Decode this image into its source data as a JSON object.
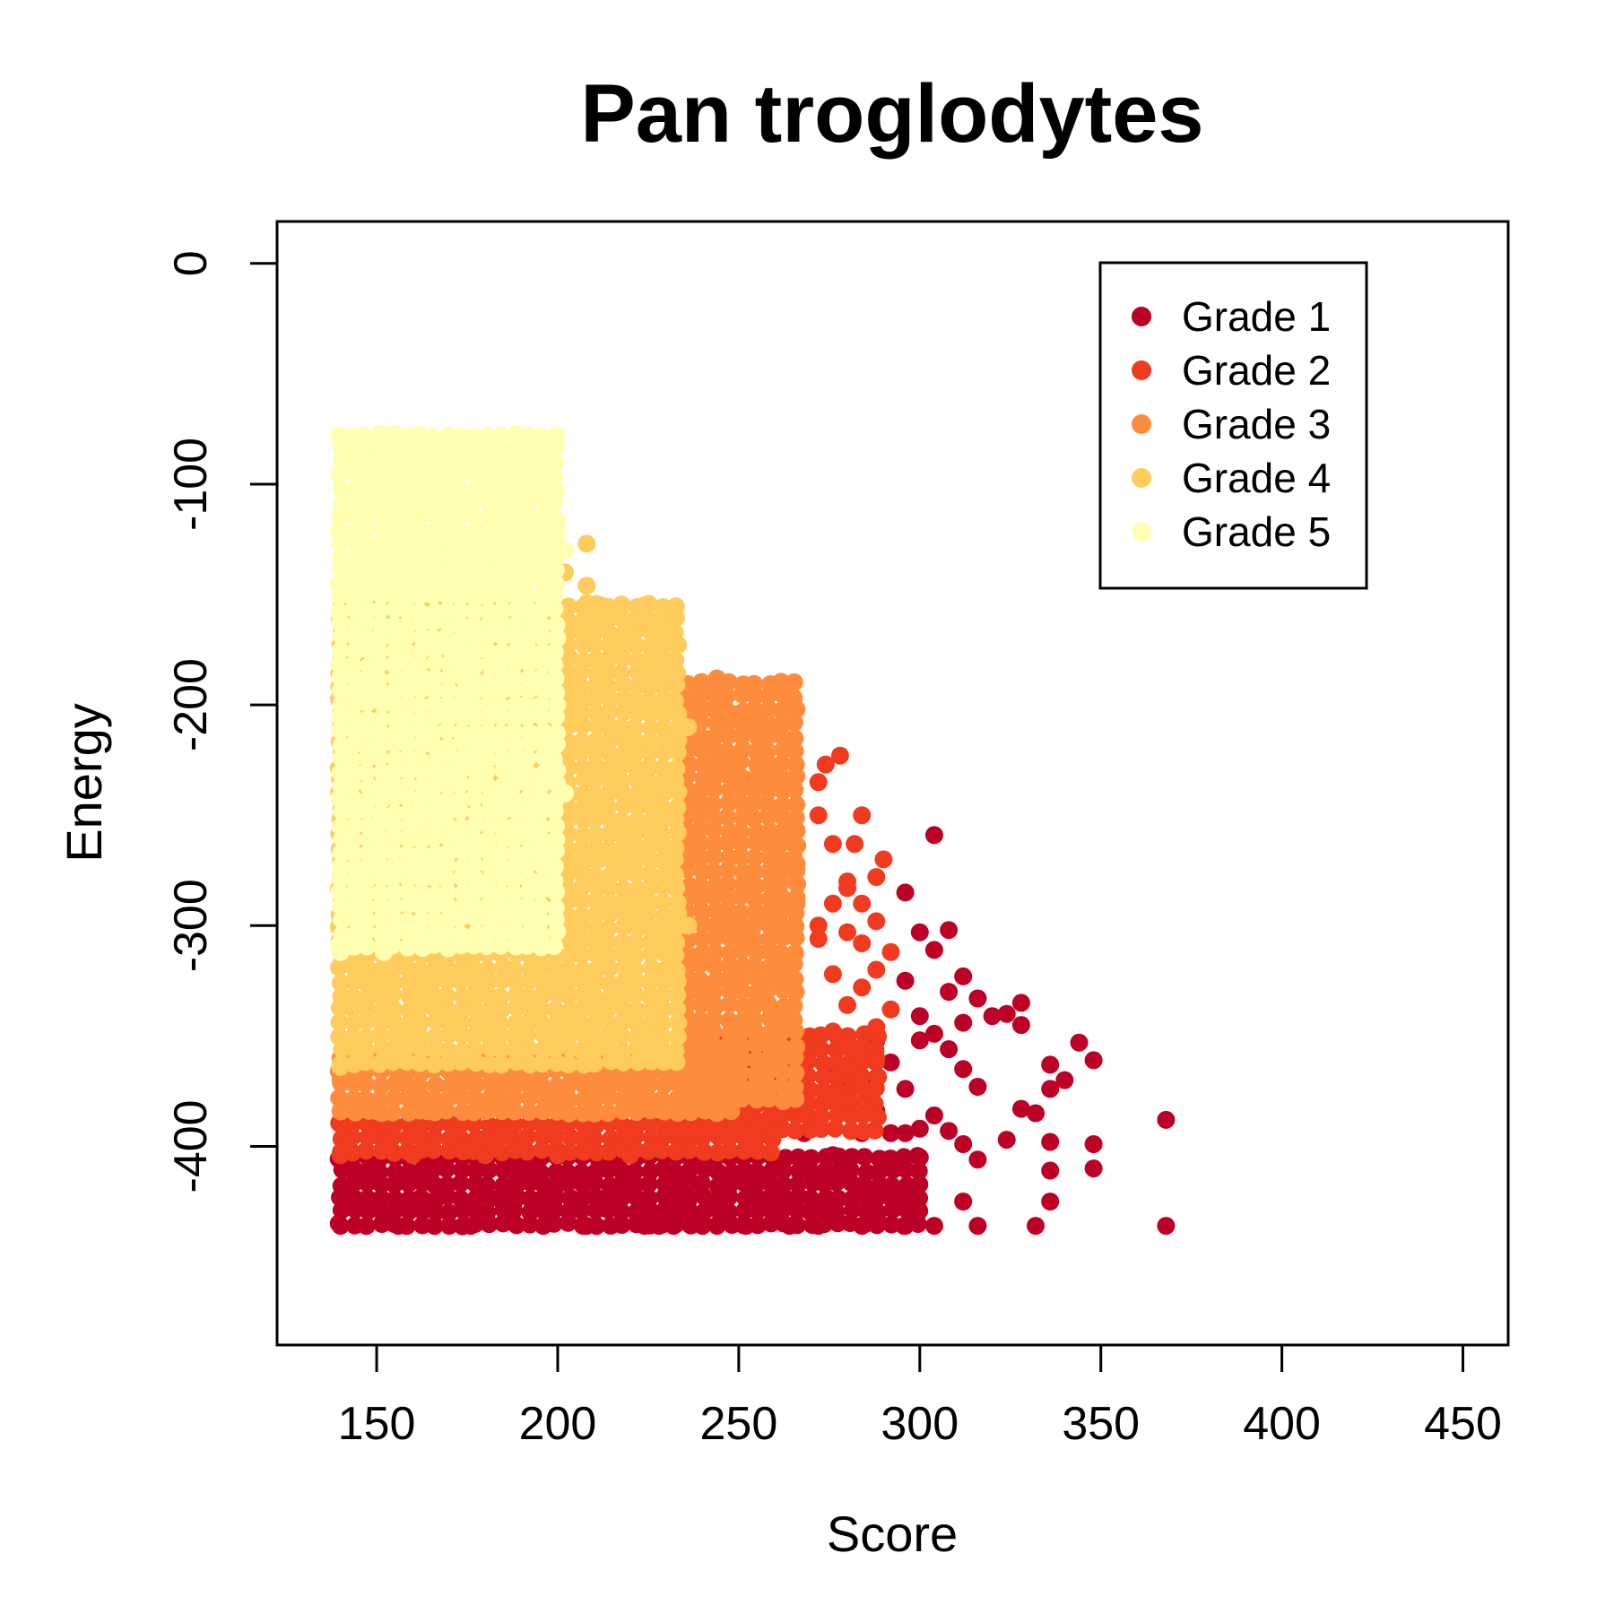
{
  "chart_data": {
    "type": "scatter",
    "title": "Pan troglodytes",
    "xlabel": "Score",
    "ylabel": "Energy",
    "xlim": [
      122.5,
      462.5
    ],
    "ylim": [
      -490,
      19
    ],
    "xticks": [
      150,
      200,
      250,
      300,
      350,
      400,
      450
    ],
    "yticks": [
      0,
      -100,
      -200,
      -300,
      -400
    ],
    "xtick_labels": [
      "150",
      "200",
      "250",
      "300",
      "350",
      "400",
      "450"
    ],
    "ytick_labels": [
      "0",
      "-100",
      "-200",
      "-300",
      "-400"
    ],
    "legend_position": "top-right",
    "grid": false,
    "series": [
      {
        "name": "Grade 1",
        "color": "#BD0026",
        "regions": [
          {
            "x": [
              140,
              300
            ],
            "y": [
              -440,
              -405
            ],
            "edge": [
              [
                140,
                -405
              ],
              [
                300,
                -405
              ]
            ]
          }
        ],
        "points": [
          [
            304,
            -259
          ],
          [
            296,
            -285
          ],
          [
            300,
            -303
          ],
          [
            308,
            -302
          ],
          [
            304,
            -311
          ],
          [
            312,
            -323
          ],
          [
            296,
            -325
          ],
          [
            308,
            -330
          ],
          [
            300,
            -341
          ],
          [
            312,
            -344
          ],
          [
            316,
            -333
          ],
          [
            320,
            -341
          ],
          [
            324,
            -340
          ],
          [
            328,
            -335
          ],
          [
            328,
            -345
          ],
          [
            300,
            -352
          ],
          [
            304,
            -349
          ],
          [
            308,
            -356
          ],
          [
            312,
            -365
          ],
          [
            316,
            -373
          ],
          [
            292,
            -362
          ],
          [
            288,
            -352
          ],
          [
            296,
            -374
          ],
          [
            304,
            -386
          ],
          [
            300,
            -392
          ],
          [
            308,
            -393
          ],
          [
            312,
            -399
          ],
          [
            316,
            -406
          ],
          [
            324,
            -397
          ],
          [
            328,
            -383
          ],
          [
            332,
            -385
          ],
          [
            336,
            -374
          ],
          [
            340,
            -370
          ],
          [
            336,
            -363
          ],
          [
            344,
            -353
          ],
          [
            348,
            -361
          ],
          [
            336,
            -398
          ],
          [
            336,
            -411
          ],
          [
            348,
            -399
          ],
          [
            348,
            -410
          ],
          [
            336,
            -425
          ],
          [
            332,
            -436
          ],
          [
            316,
            -436
          ],
          [
            312,
            -425
          ],
          [
            304,
            -436
          ],
          [
            296,
            -425
          ],
          [
            296,
            -436
          ],
          [
            284,
            -418
          ],
          [
            284,
            -436
          ],
          [
            368,
            -388
          ],
          [
            368,
            -436
          ],
          [
            280,
            -384
          ],
          [
            288,
            -384
          ],
          [
            284,
            -394
          ],
          [
            292,
            -394
          ],
          [
            296,
            -394
          ],
          [
            276,
            -404
          ],
          [
            268,
            -394
          ],
          [
            264,
            -384
          ],
          [
            280,
            -374
          ],
          [
            288,
            -369
          ],
          [
            276,
            -364
          ],
          [
            280,
            -410
          ],
          [
            276,
            -425
          ],
          [
            272,
            -436
          ],
          [
            264,
            -436
          ],
          [
            256,
            -425
          ],
          [
            252,
            -436
          ],
          [
            244,
            -425
          ],
          [
            240,
            -436
          ],
          [
            236,
            -425
          ],
          [
            228,
            -436
          ],
          [
            216,
            -425
          ],
          [
            208,
            -436
          ],
          [
            196,
            -436
          ],
          [
            188,
            -425
          ],
          [
            176,
            -436
          ],
          [
            164,
            -425
          ],
          [
            156,
            -436
          ],
          [
            148,
            -425
          ],
          [
            140,
            -436
          ],
          [
            224,
            -436
          ],
          [
            232,
            -436
          ],
          [
            244,
            -436
          ]
        ]
      },
      {
        "name": "Grade 2",
        "color": "#F03B20",
        "regions": [
          {
            "x": [
              140,
              260
            ],
            "y": [
              -405,
              -390
            ],
            "edge": [
              [
                140,
                -390
              ],
              [
                260,
                -390
              ]
            ]
          },
          {
            "x": [
              236,
              290
            ],
            "y": [
              -395,
              -350
            ],
            "edge": [
              [
                236,
                -380
              ],
              [
                250,
                -370
              ],
              [
                262,
                -340
              ],
              [
                272,
                -300
              ],
              [
                280,
                -280
              ],
              [
                290,
                -270
              ]
            ]
          }
        ],
        "points": [
          [
            274,
            -227
          ],
          [
            278,
            -223
          ],
          [
            272,
            -235
          ],
          [
            272,
            -250
          ],
          [
            284,
            -250
          ],
          [
            276,
            -263
          ],
          [
            282,
            -263
          ],
          [
            280,
            -283
          ],
          [
            288,
            -278
          ],
          [
            284,
            -290
          ],
          [
            276,
            -290
          ],
          [
            288,
            -298
          ],
          [
            280,
            -303
          ],
          [
            272,
            -306
          ],
          [
            284,
            -308
          ],
          [
            292,
            -312
          ],
          [
            288,
            -320
          ],
          [
            276,
            -322
          ],
          [
            284,
            -328
          ],
          [
            280,
            -336
          ],
          [
            292,
            -338
          ],
          [
            288,
            -346
          ],
          [
            276,
            -348
          ],
          [
            284,
            -355
          ],
          [
            268,
            -355
          ],
          [
            280,
            -365
          ],
          [
            288,
            -360
          ],
          [
            264,
            -370
          ],
          [
            276,
            -378
          ],
          [
            268,
            -384
          ],
          [
            256,
            -390
          ],
          [
            244,
            -395
          ],
          [
            232,
            -395
          ],
          [
            220,
            -395
          ],
          [
            208,
            -395
          ],
          [
            196,
            -395
          ],
          [
            184,
            -395
          ],
          [
            172,
            -395
          ],
          [
            160,
            -395
          ],
          [
            148,
            -395
          ],
          [
            140,
            -404
          ],
          [
            160,
            -404
          ],
          [
            180,
            -404
          ],
          [
            200,
            -404
          ],
          [
            220,
            -404
          ]
        ]
      },
      {
        "name": "Grade 3",
        "color": "#FD8D3C",
        "regions": [
          {
            "x": [
              140,
              250
            ],
            "y": [
              -388,
              -360
            ],
            "edge": [
              [
                140,
                -360
              ],
              [
                200,
                -362
              ],
              [
                230,
                -360
              ],
              [
                250,
                -352
              ]
            ]
          },
          {
            "x": [
              236,
              266
            ],
            "y": [
              -380,
              -190
            ],
            "edge": [
              [
                236,
                -195
              ],
              [
                240,
                -190
              ],
              [
                246,
                -200
              ],
              [
                252,
                -210
              ],
              [
                258,
                -235
              ],
              [
                264,
                -262
              ],
              [
                266,
                -275
              ]
            ]
          }
        ],
        "points": [
          [
            264,
            -198
          ],
          [
            250,
            -204
          ],
          [
            256,
            -216
          ],
          [
            250,
            -232
          ],
          [
            262,
            -236
          ],
          [
            252,
            -249
          ],
          [
            264,
            -255
          ],
          [
            258,
            -263
          ],
          [
            266,
            -272
          ],
          [
            266,
            -290
          ],
          [
            262,
            -300
          ],
          [
            262,
            -320
          ],
          [
            258,
            -335
          ],
          [
            254,
            -345
          ],
          [
            250,
            -352
          ],
          [
            244,
            -360
          ],
          [
            232,
            -370
          ],
          [
            222,
            -376
          ],
          [
            210,
            -380
          ],
          [
            196,
            -384
          ],
          [
            180,
            -384
          ],
          [
            164,
            -384
          ],
          [
            150,
            -384
          ],
          [
            140,
            -384
          ],
          [
            140,
            -370
          ],
          [
            160,
            -374
          ],
          [
            200,
            -374
          ],
          [
            240,
            -190
          ],
          [
            244,
            -188
          ]
        ]
      },
      {
        "name": "Grade 4",
        "color": "#FECC5C",
        "regions": [
          {
            "x": [
              140,
              236
            ],
            "y": [
              -364,
              -155
            ],
            "edge": [
              [
                140,
                -364
              ],
              [
                170,
                -362
              ],
              [
                200,
                -354
              ],
              [
                220,
                -340
              ],
              [
                232,
                -320
              ],
              [
                236,
                -300
              ]
            ]
          }
        ],
        "points": [
          [
            208,
            -127
          ],
          [
            208,
            -146
          ],
          [
            212,
            -155
          ],
          [
            216,
            -156
          ],
          [
            224,
            -155
          ],
          [
            228,
            -171
          ],
          [
            232,
            -172
          ],
          [
            224,
            -182
          ],
          [
            212,
            -183
          ],
          [
            232,
            -190
          ],
          [
            228,
            -203
          ],
          [
            236,
            -210
          ],
          [
            220,
            -214
          ],
          [
            208,
            -154
          ],
          [
            202,
            -140
          ]
        ]
      },
      {
        "name": "Grade 5",
        "color": "#FFFFB2",
        "regions": [
          {
            "x": [
              140,
              202
            ],
            "y": [
              -312,
              -78
            ],
            "edge": [
              [
                140,
                -78
              ],
              [
                158,
                -84
              ],
              [
                170,
                -96
              ],
              [
                184,
                -108
              ],
              [
                196,
                -117
              ],
              [
                202,
                -130
              ],
              [
                202,
                -240
              ],
              [
                196,
                -270
              ],
              [
                184,
                -292
              ],
              [
                168,
                -306
              ],
              [
                152,
                -312
              ],
              [
                140,
                -312
              ]
            ]
          }
        ],
        "points": [
          [
            140,
            -78
          ],
          [
            146,
            -78
          ],
          [
            152,
            -78
          ],
          [
            158,
            -80
          ],
          [
            164,
            -88
          ],
          [
            170,
            -96
          ],
          [
            178,
            -104
          ],
          [
            184,
            -107
          ],
          [
            188,
            -112
          ],
          [
            192,
            -114
          ],
          [
            200,
            -117
          ]
        ]
      }
    ]
  }
}
